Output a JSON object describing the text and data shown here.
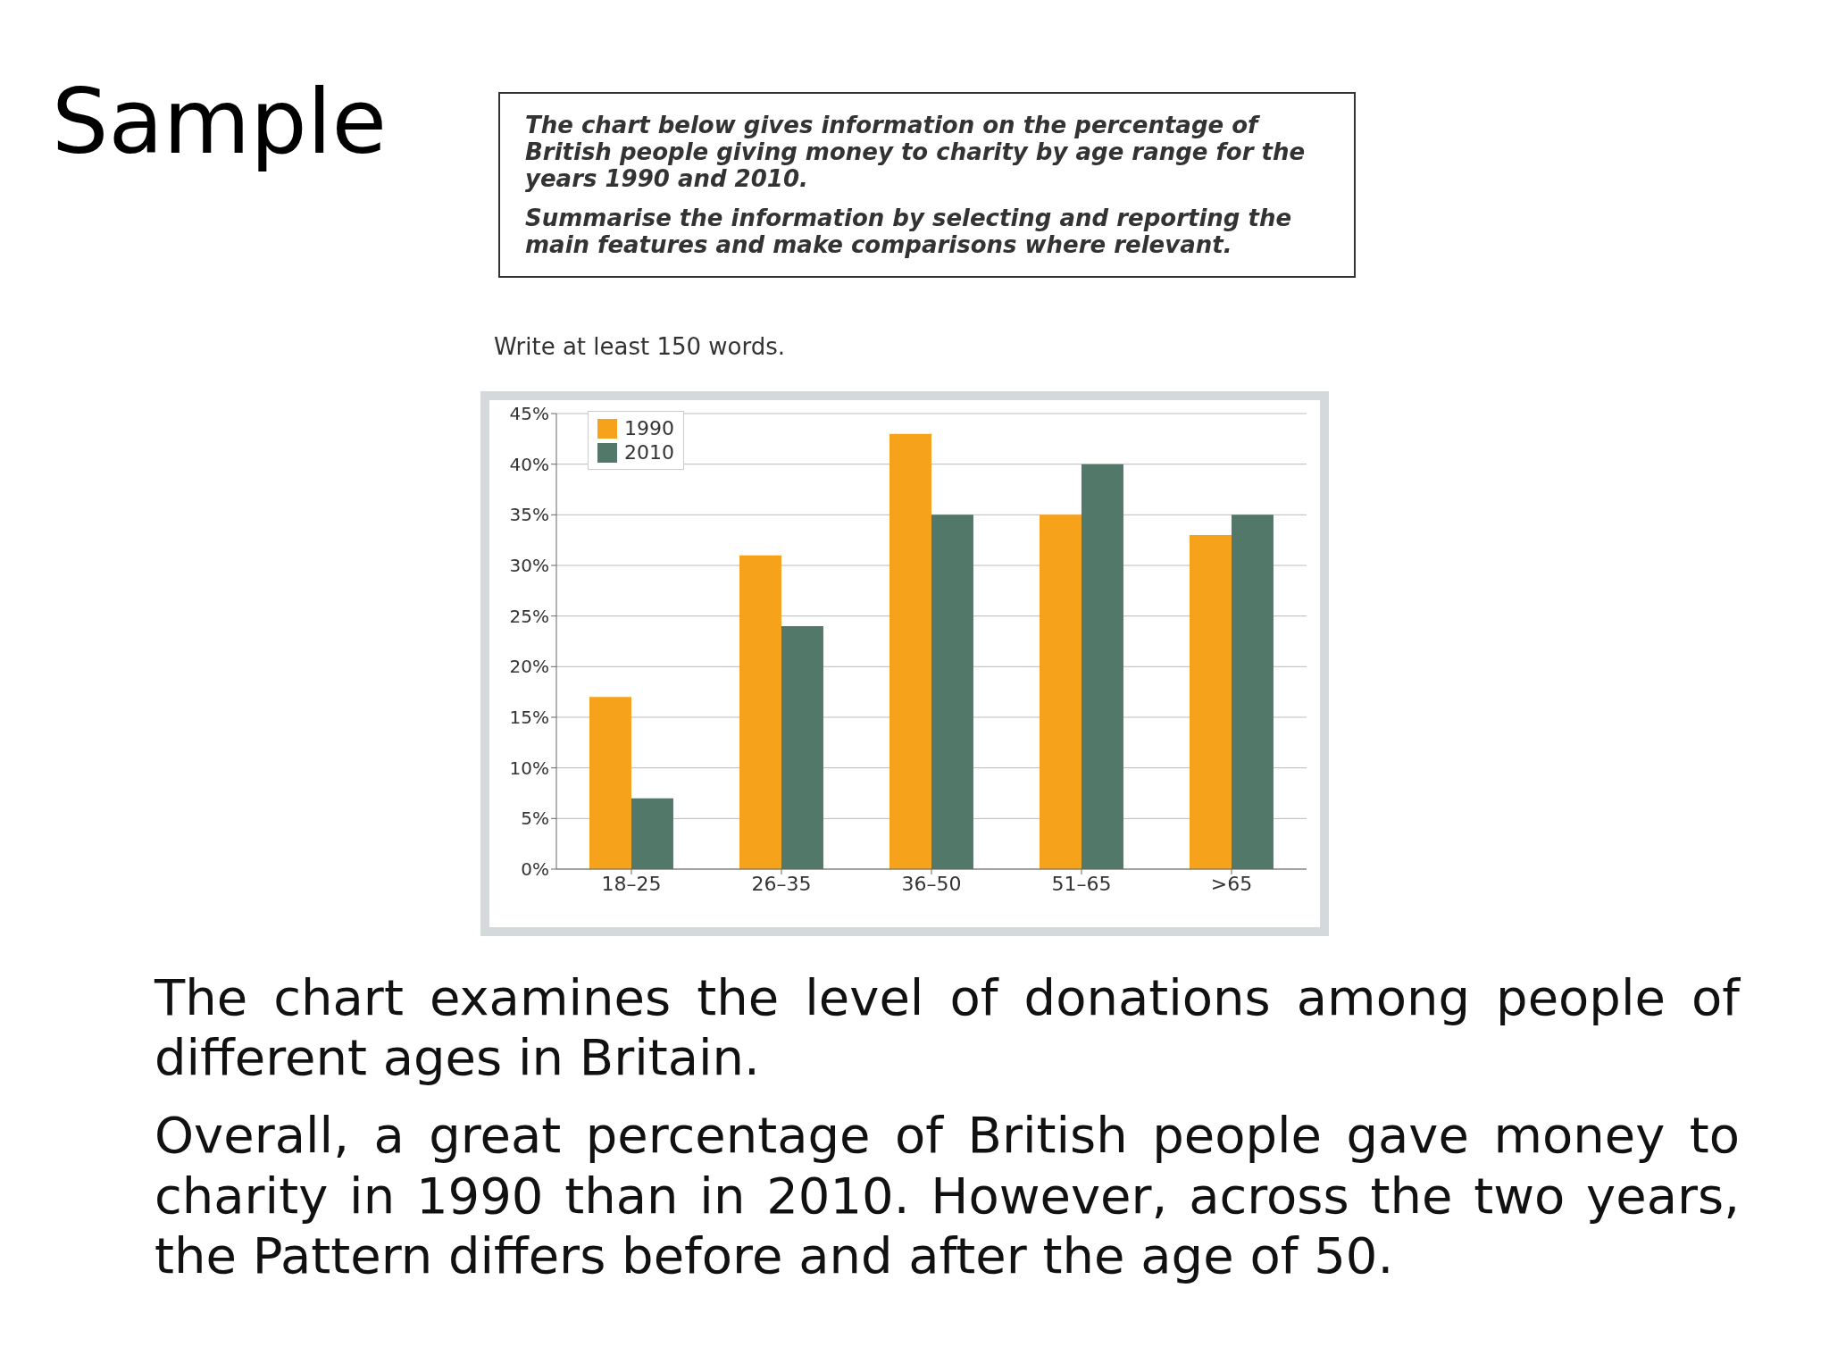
{
  "chart_data": {
    "type": "bar",
    "title": "Sample",
    "subtitle": "Write at least 150 words.",
    "annotations": [
      "The chart below gives information on the percentage of British people giving money to charity by age range for the years 1990 and 2010.",
      "Summarise the information by selecting and reporting the main features and make comparisons where relevant.",
      "The chart examines the level of donations among people of different ages in Britain.",
      "Overall, a great percentage of British people gave money to charity in 1990 than in 2010. However, across the two years, the Pattern differs before and after the age of 50."
    ],
    "categories": [
      "18–25",
      "26–35",
      "36–50",
      "51–65",
      ">65"
    ],
    "series": [
      {
        "name": "1990",
        "color": "#f7a21b",
        "values": [
          17,
          31,
          43,
          35,
          33
        ]
      },
      {
        "name": "2010",
        "color": "#52786a",
        "values": [
          7,
          24,
          35,
          40,
          35
        ]
      }
    ],
    "ylim": [
      0,
      45
    ],
    "yticks": [
      {
        "value": 0,
        "label": "0%"
      },
      {
        "value": 5,
        "label": "5%"
      },
      {
        "value": 10,
        "label": "10%"
      },
      {
        "value": 15,
        "label": "15%"
      },
      {
        "value": 20,
        "label": "20%"
      },
      {
        "value": 25,
        "label": "25%"
      },
      {
        "value": 30,
        "label": "30%"
      },
      {
        "value": 35,
        "label": "35%"
      },
      {
        "value": 40,
        "label": "40%"
      },
      {
        "value": 45,
        "label": "45%"
      }
    ],
    "grid": "y",
    "legend": "top left"
  }
}
